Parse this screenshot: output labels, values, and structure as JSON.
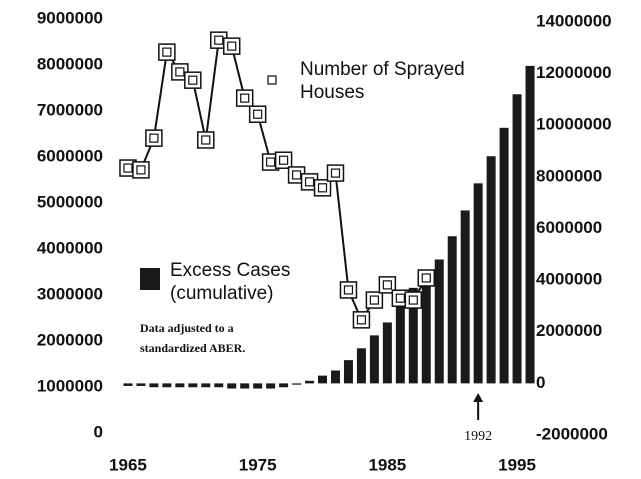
{
  "chart_data": {
    "type": "combo",
    "xlim": [
      1964,
      1997
    ],
    "xticks": [
      1965,
      1975,
      1985,
      1995
    ],
    "ylim": [
      0,
      9000000
    ],
    "yticks": [
      0,
      1000000,
      2000000,
      3000000,
      4000000,
      5000000,
      6000000,
      7000000,
      8000000,
      9000000
    ],
    "y2lim": [
      -2000000,
      14000000
    ],
    "y2ticks": [
      -2000000,
      0,
      2000000,
      4000000,
      6000000,
      8000000,
      10000000,
      12000000,
      14000000
    ],
    "series": [
      {
        "name": "Number of Sprayed Houses",
        "type": "line",
        "color": "#111111",
        "x": [
          1965,
          1966,
          1967,
          1968,
          1969,
          1970,
          1971,
          1972,
          1973,
          1974,
          1975,
          1976,
          1977,
          1978,
          1979,
          1980,
          1981,
          1982,
          1983,
          1984,
          1985,
          1986,
          1987,
          1988
        ],
        "values": [
          5760000,
          5720000,
          6410000,
          8280000,
          7850000,
          7670000,
          6370000,
          8540000,
          8410000,
          7280000,
          6930000,
          5890000,
          5930000,
          5610000,
          5460000,
          5330000,
          5650000,
          3110000,
          2460000,
          2890000,
          3220000,
          2930000,
          2890000,
          3370000
        ]
      },
      {
        "name": "Excess Cases (cumulative)",
        "type": "bar",
        "axis": "y2",
        "color": "#1a1a1a",
        "x": [
          1965,
          1966,
          1967,
          1968,
          1969,
          1970,
          1971,
          1972,
          1973,
          1974,
          1975,
          1976,
          1977,
          1978,
          1979,
          1980,
          1981,
          1982,
          1983,
          1984,
          1985,
          1986,
          1987,
          1988,
          1989,
          1990,
          1991,
          1992,
          1993,
          1994,
          1995,
          1996
        ],
        "values": [
          -100000,
          -100000,
          -150000,
          -150000,
          -150000,
          -150000,
          -150000,
          -150000,
          -200000,
          -200000,
          -200000,
          -200000,
          -150000,
          -50000,
          100000,
          300000,
          500000,
          900000,
          1360000,
          1860000,
          2360000,
          3000000,
          3700000,
          4400000,
          4800000,
          5700000,
          6700000,
          7750000,
          8800000,
          9900000,
          11200000,
          12300000
        ]
      }
    ],
    "annotations": [
      {
        "text": "Data adjusted to a standardized ABER."
      },
      {
        "text": "1992",
        "x": 1992
      }
    ]
  }
}
